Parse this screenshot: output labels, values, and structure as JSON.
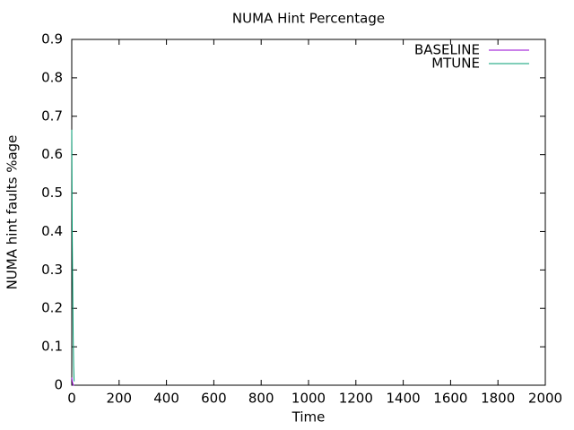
{
  "chart_data": {
    "type": "line",
    "title": "NUMA Hint Percentage",
    "x_label": "Time",
    "y_label": "NUMA hint faults %age",
    "x": [
      0,
      2,
      4,
      6,
      8,
      10
    ],
    "series": [
      {
        "name": "BASELINE",
        "color": "#9400d3",
        "values": [
          0.02,
          0.01,
          0.005,
          0,
          0,
          0
        ]
      },
      {
        "name": "MTUNE",
        "color": "#009e73",
        "values": [
          0.665,
          0.4,
          0.25,
          0.13,
          0.05,
          0.01
        ]
      }
    ],
    "xlim": [
      0,
      2000
    ],
    "xticks": [
      0,
      200,
      400,
      600,
      800,
      1000,
      1200,
      1400,
      1600,
      1800,
      2000
    ],
    "ylim": [
      0,
      0.9
    ],
    "yticks": [
      0,
      0.1,
      0.2,
      0.3,
      0.4,
      0.5,
      0.6,
      0.7,
      0.8,
      0.9
    ],
    "legend": "top-right"
  }
}
